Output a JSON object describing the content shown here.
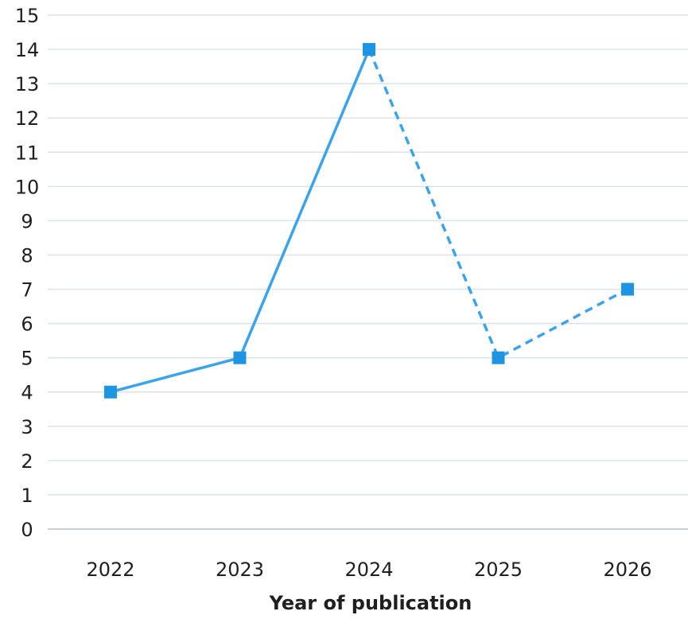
{
  "chart_data": {
    "type": "line",
    "categories": [
      "2022",
      "2023",
      "2024",
      "2025",
      "2026"
    ],
    "series": [
      {
        "values": [
          4,
          5,
          14,
          5,
          7
        ],
        "color": "#3aa3ec",
        "marker_color": "#1e95e3",
        "solid_through_index": 2,
        "dashed_from_index": 2
      }
    ],
    "y_ticks": [
      "0",
      "1",
      "2",
      "3",
      "4",
      "5",
      "6",
      "7",
      "8",
      "9",
      "10",
      "11",
      "12",
      "13",
      "14",
      "15"
    ],
    "ylim": [
      0,
      15
    ],
    "xlabel": "Year of publication",
    "ylabel": "",
    "title": "",
    "grid": true,
    "legend": "none",
    "colors": {
      "grid": "#dde2ea",
      "baseline": "#c8d0dc",
      "text": "#1f1f1f"
    }
  }
}
